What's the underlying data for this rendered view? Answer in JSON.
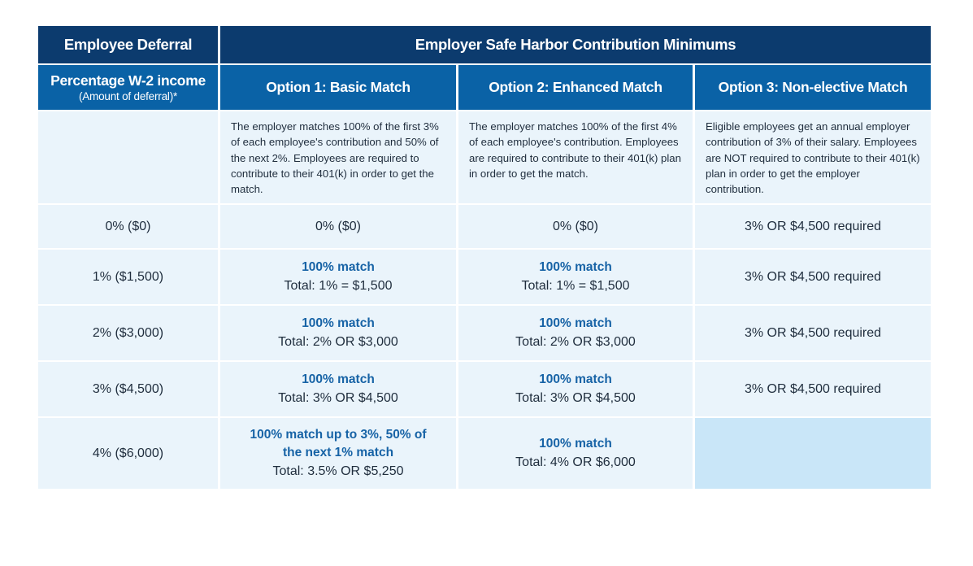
{
  "header": {
    "left_title": "Employee Deferral",
    "right_title": "Employer Safe Harbor Contribution Minimums",
    "col0_label": "Percentage W-2 income",
    "col0_sublabel": "(Amount of deferral)*",
    "options": [
      {
        "label": "Option 1: Basic Match"
      },
      {
        "label": "Option 2: Enhanced Match"
      },
      {
        "label": "Option 3: Non-elective Match"
      }
    ]
  },
  "descriptions": [
    "The employer matches 100% of the first 3% of each employee's contribution and 50% of the next 2%. Employees are required to contribute to their 401(k) in order to get the match.",
    "The employer matches 100% of the first 4% of each employee's contribution. Employees are required to contribute to their 401(k) plan in order to get the match.",
    "Eligible employees get an annual employer contribution of 3% of their salary. Employees are NOT required to contribute to their 401(k) plan in order to get the employer contribution."
  ],
  "rows": [
    {
      "deferral": "0% ($0)",
      "opt1": {
        "match": "",
        "total": "0% ($0)"
      },
      "opt2": {
        "match": "",
        "total": "0% ($0)"
      },
      "opt3": "3% OR $4,500 required"
    },
    {
      "deferral": "1% ($1,500)",
      "opt1": {
        "match": "100% match",
        "total": "Total: 1% = $1,500"
      },
      "opt2": {
        "match": "100% match",
        "total": "Total: 1% = $1,500"
      },
      "opt3": "3% OR $4,500 required"
    },
    {
      "deferral": "2% ($3,000)",
      "opt1": {
        "match": "100% match",
        "total": "Total: 2% OR $3,000"
      },
      "opt2": {
        "match": "100% match",
        "total": "Total: 2% OR $3,000"
      },
      "opt3": "3% OR $4,500 required"
    },
    {
      "deferral": "3% ($4,500)",
      "opt1": {
        "match": "100% match",
        "total": "Total: 3% OR $4,500"
      },
      "opt2": {
        "match": "100% match",
        "total": "Total: 3% OR $4,500"
      },
      "opt3": "3% OR $4,500 required"
    },
    {
      "deferral": "4% ($6,000)",
      "opt1": {
        "match": "100% match up to 3%, 50% of the next 1% match",
        "total": "Total: 3.5% OR $5,250"
      },
      "opt2": {
        "match": "100% match",
        "total": "Total: 4% OR $6,000"
      },
      "opt3": ""
    }
  ],
  "colors": {
    "header_dark": "#0c3b6e",
    "header_mid": "#0a62a6",
    "cell_bg": "#eaf4fb",
    "cell_highlight": "#c9e6f8",
    "match_text": "#1763a6"
  }
}
